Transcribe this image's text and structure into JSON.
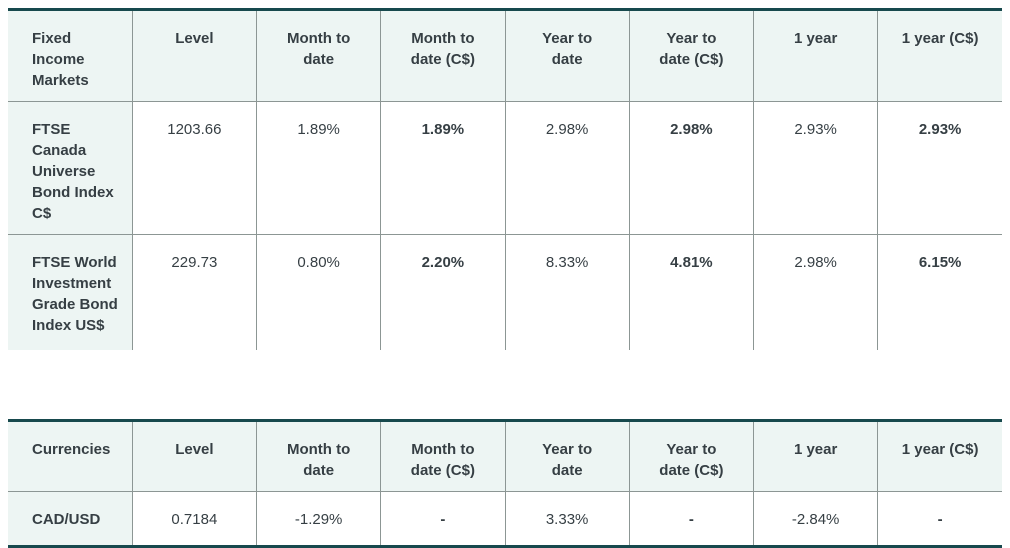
{
  "theme": {
    "accent_border_color": "#17494d",
    "header_bg": "#edf5f3",
    "grid_line_color": "#8c9694",
    "text_color": "#363f44"
  },
  "tables": [
    {
      "id": "fixed_income_markets",
      "columns": [
        "Fixed Income Markets",
        "Level",
        "Month to date",
        "Month to date (C$)",
        "Year to date",
        "Year to date (C$)",
        "1 year",
        "1 year (C$)"
      ],
      "bold_value_columns": [
        2,
        4,
        6
      ],
      "rows": [
        {
          "label": "FTSE Canada Universe Bond Index C$",
          "values": [
            "1203.66",
            "1.89%",
            "1.89%",
            "2.98%",
            "2.98%",
            "2.93%",
            "2.93%"
          ]
        },
        {
          "label": "FTSE World Investment Grade Bond Index US$",
          "values": [
            "229.73",
            "0.80%",
            "2.20%",
            "8.33%",
            "4.81%",
            "2.98%",
            "6.15%"
          ]
        }
      ]
    },
    {
      "id": "currencies",
      "columns": [
        "Currencies",
        "Level",
        "Month to date",
        "Month to date (C$)",
        "Year to date",
        "Year to date (C$)",
        "1 year",
        "1 year (C$)"
      ],
      "bold_value_columns": [
        2,
        4,
        6
      ],
      "rows": [
        {
          "label": "CAD/USD",
          "values": [
            "0.7184",
            "-1.29%",
            "-",
            "3.33%",
            "-",
            "-2.84%",
            "-"
          ]
        }
      ]
    }
  ]
}
